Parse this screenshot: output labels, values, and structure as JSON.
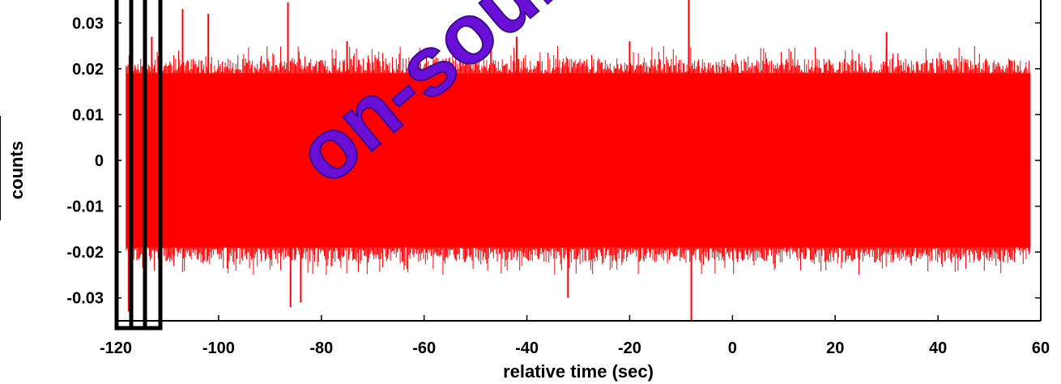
{
  "chart_data": {
    "type": "line",
    "xlabel": "relative time (sec)",
    "ylabel": "counts",
    "xlim": [
      -120,
      60
    ],
    "ylim": [
      -0.035,
      0.035
    ],
    "x_ticks": [
      -120,
      -100,
      -80,
      -60,
      -40,
      -20,
      0,
      20,
      40,
      60
    ],
    "x_tick_labels": [
      "-120",
      "-100",
      "-80",
      "-60",
      "-40",
      "-20",
      "0",
      "20",
      "40",
      "60"
    ],
    "y_ticks": [
      0.03,
      0.02,
      0.01,
      0,
      -0.01,
      -0.02,
      -0.03
    ],
    "y_tick_labels": [
      "0.03",
      "0.02",
      "0.01",
      "0",
      "-0.01",
      "-0.02",
      "-0.03"
    ],
    "series": [
      {
        "color": "#ff0000",
        "x_range": [
          -118,
          58
        ],
        "band_core": [
          -0.019,
          0.019
        ],
        "typical_extent": [
          -0.025,
          0.025
        ],
        "spikes": [
          {
            "x": -117.5,
            "y": -0.033
          },
          {
            "x": -113,
            "y": 0.027
          },
          {
            "x": -107,
            "y": 0.033
          },
          {
            "x": -102,
            "y": 0.032
          },
          {
            "x": -86.5,
            "y": 0.0345
          },
          {
            "x": -84,
            "y": -0.031
          },
          {
            "x": -86,
            "y": -0.032
          },
          {
            "x": -75,
            "y": 0.026
          },
          {
            "x": -42,
            "y": 0.027
          },
          {
            "x": -8.5,
            "y": 0.0355
          },
          {
            "x": -8,
            "y": -0.035
          },
          {
            "x": -32,
            "y": -0.03
          },
          {
            "x": -20,
            "y": 0.026
          },
          {
            "x": 30,
            "y": 0.028
          }
        ]
      }
    ],
    "colors": {
      "signal": "#ff0000",
      "watermark": "#6a0fd8"
    }
  },
  "annotations": {
    "watermark": "on-source"
  }
}
